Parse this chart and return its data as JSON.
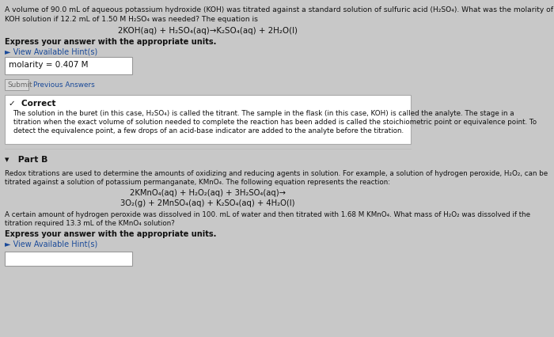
{
  "bg_color": "#c8c8c8",
  "content_bg": "#e0e0e0",
  "white_box_color": "#ffffff",
  "dark_text": "#111111",
  "blue_link": "#1a4a99",
  "green_check": "#2a7a2a",
  "title_text_1": "A volume of 90.0 mL of aqueous potassium hydroxide (KOH) was titrated against a standard solution of sulfuric acid (H₂SO₄). What was the molarity of the",
  "title_text_2": "KOH solution if 12.2 mL of 1.50 M H₂SO₄ was needed? The equation is",
  "equation_1": "2KOH(aq) + H₂SO₄(aq)→K₂SO₄(aq) + 2H₂O(l)",
  "express_label": "Express your answer with the appropriate units.",
  "hint_label": "► View Available Hint(s)",
  "molarity_answer": "molarity = 0.407 M",
  "submit_label": "Submit",
  "prev_answers_label": "Previous Answers",
  "correct_check": "✓  Correct",
  "correct_body_1": "The solution in the buret (in this case, H₂SO₄) is called the titrant. The sample in the flask (in this case, KOH) is called the analyte. The stage in a",
  "correct_body_2": "titration when the exact volume of solution needed to complete the reaction has been added is called the stoichiometric point or equivalence point. To",
  "correct_body_3": "detect the equivalence point, a few drops of an acid-base indicator are added to the analyte before the titration.",
  "part_b_label": "▾   Part B",
  "part_b_text_1": "Redox titrations are used to determine the amounts of oxidizing and reducing agents in solution. For example, a solution of hydrogen peroxide, H₂O₂, can be",
  "part_b_text_2": "titrated against a solution of potassium permanganate, KMnO₄. The following equation represents the reaction:",
  "equation_2a": "2KMnO₄(aq) + H₂O₂(aq) + 3H₂SO₄(aq)→",
  "equation_2b": "3O₂(g) + 2MnSO₄(aq) + K₂SO₄(aq) + 4H₂O(l)",
  "part_b_text_3": "A certain amount of hydrogen peroxide was dissolved in 100. mL of water and then titrated with 1.68 M KMnO₄. What mass of H₂O₂ was dissolved if the",
  "part_b_text_4": "titration required 13.3 mL of the KMnO₄ solution?",
  "express_label_2": "Express your answer with the appropriate units.",
  "hint_label_2": "► View Available Hint(s)"
}
